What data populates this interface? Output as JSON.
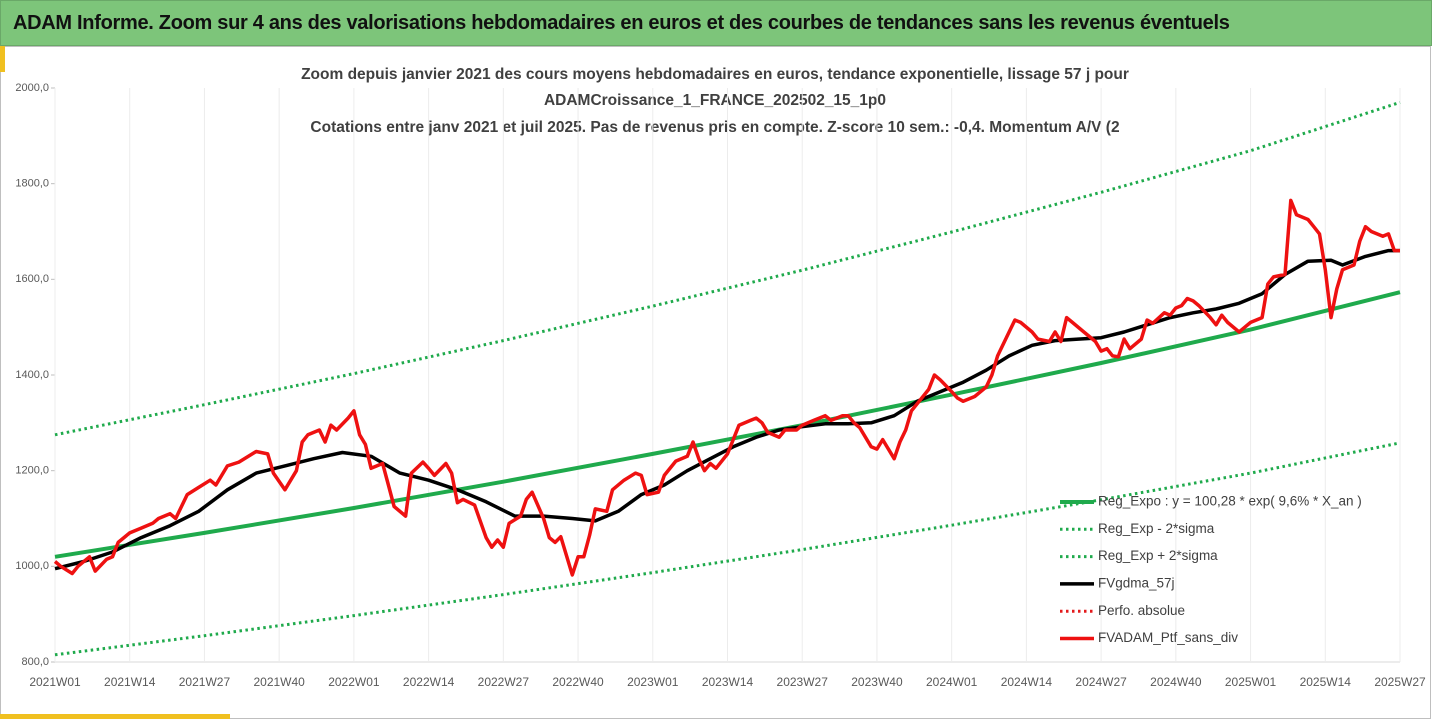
{
  "header": {
    "title": "ADAM Informe. Zoom sur 4 ans des valorisations hebdomadaires en euros et des courbes de tendances sans les revenus éventuels"
  },
  "chart_data": {
    "type": "line",
    "title": [
      "Zoom depuis janvier 2021 des cours moyens hebdomadaires  en euros, tendance exponentielle, lissage 57 j pour",
      "ADAMCroissance_1_FRANCE_202502_15_1p0",
      "Cotations  entre janv 2021 et juil 2025. Pas de revenus pris en compte. Z-score 10 sem.: -0,4. Momentum  A/V (2"
    ],
    "xlim": [
      0,
      234
    ],
    "xticks": [
      {
        "value": 0,
        "label": "2021W01"
      },
      {
        "value": 13,
        "label": "2021W14"
      },
      {
        "value": 26,
        "label": "2021W27"
      },
      {
        "value": 39,
        "label": "2021W40"
      },
      {
        "value": 52,
        "label": "2022W01"
      },
      {
        "value": 65,
        "label": "2022W14"
      },
      {
        "value": 78,
        "label": "2022W27"
      },
      {
        "value": 91,
        "label": "2022W40"
      },
      {
        "value": 104,
        "label": "2023W01"
      },
      {
        "value": 117,
        "label": "2023W14"
      },
      {
        "value": 130,
        "label": "2023W27"
      },
      {
        "value": 143,
        "label": "2023W40"
      },
      {
        "value": 156,
        "label": "2024W01"
      },
      {
        "value": 169,
        "label": "2024W14"
      },
      {
        "value": 182,
        "label": "2024W27"
      },
      {
        "value": 195,
        "label": "2024W40"
      },
      {
        "value": 208,
        "label": "2025W01"
      },
      {
        "value": 221,
        "label": "2025W14"
      },
      {
        "value": 234,
        "label": "2025W27"
      }
    ],
    "ylim": [
      800,
      2000
    ],
    "yticks": [
      {
        "value": 800,
        "label": "800,0"
      },
      {
        "value": 1000,
        "label": "1000,0"
      },
      {
        "value": 1200,
        "label": "1200,0"
      },
      {
        "value": 1400,
        "label": "1400,0"
      },
      {
        "value": 1600,
        "label": "1600,0"
      },
      {
        "value": 1800,
        "label": "1800,0"
      },
      {
        "value": 2000,
        "label": "2000,0"
      }
    ],
    "grid": "x",
    "legend": "lower right",
    "series": [
      {
        "name": "Reg_Expo : y = 100,28 * exp( 9,6% *  X_an )",
        "color": "#1faa4c",
        "line_style": "solid",
        "x": [
          0,
          26,
          52,
          78,
          104,
          130,
          156,
          182,
          208,
          234
        ],
        "values": [
          1020,
          1070,
          1122,
          1177,
          1235,
          1295,
          1359,
          1425,
          1495,
          1573
        ]
      },
      {
        "name": "Reg_Exp - 2*sigma",
        "color": "#1faa4c",
        "line_style": "dotted",
        "x": [
          0,
          26,
          52,
          78,
          104,
          130,
          156,
          182,
          208,
          234
        ],
        "values": [
          815,
          855,
          897,
          941,
          987,
          1035,
          1086,
          1139,
          1195,
          1258
        ]
      },
      {
        "name": "Reg_Exp + 2*sigma",
        "color": "#1faa4c",
        "line_style": "dotted",
        "x": [
          0,
          26,
          52,
          78,
          104,
          130,
          156,
          182,
          208,
          234
        ],
        "values": [
          1275,
          1338,
          1403,
          1472,
          1544,
          1619,
          1699,
          1782,
          1869,
          1970
        ]
      },
      {
        "name": "FVgdma_57j",
        "color": "#000000",
        "line_style": "solid",
        "x": [
          0,
          5,
          10,
          15,
          20,
          25,
          30,
          35,
          40,
          45,
          50,
          55,
          60,
          65,
          70,
          75,
          80,
          85,
          90,
          94,
          98,
          102,
          106,
          110,
          114,
          118,
          122,
          126,
          130,
          134,
          138,
          142,
          146,
          150,
          154,
          158,
          162,
          166,
          170,
          174,
          178,
          182,
          186,
          190,
          194,
          198,
          202,
          206,
          210,
          214,
          218,
          222,
          224,
          228,
          232,
          234
        ],
        "values": [
          995,
          1010,
          1030,
          1060,
          1085,
          1115,
          1160,
          1195,
          1210,
          1225,
          1238,
          1230,
          1195,
          1180,
          1160,
          1135,
          1105,
          1105,
          1100,
          1095,
          1115,
          1150,
          1170,
          1200,
          1225,
          1250,
          1270,
          1285,
          1292,
          1298,
          1298,
          1300,
          1315,
          1345,
          1365,
          1385,
          1410,
          1440,
          1462,
          1472,
          1475,
          1478,
          1490,
          1505,
          1520,
          1530,
          1538,
          1550,
          1570,
          1610,
          1638,
          1640,
          1630,
          1648,
          1660,
          1660
        ]
      },
      {
        "name": "Perfo. absolue",
        "color": "#e31a1c",
        "line_style": "dotted",
        "x": [],
        "values": []
      },
      {
        "name": "FVADAM_Ptf_sans_div",
        "color": "#ee1111",
        "line_style": "solid",
        "x": [
          0,
          1,
          3,
          4,
          6,
          7,
          9,
          10,
          11,
          13,
          15,
          17,
          18,
          20,
          21,
          23,
          25,
          27,
          28,
          30,
          32,
          35,
          37,
          38,
          40,
          42,
          43,
          44,
          46,
          47,
          48,
          49,
          51,
          52,
          53,
          54,
          55,
          57,
          58,
          59,
          61,
          62,
          64,
          65,
          66,
          68,
          69,
          70,
          71,
          73,
          75,
          76,
          77,
          78,
          79,
          81,
          82,
          83,
          85,
          86,
          87,
          88,
          90,
          91,
          92,
          93,
          94,
          96,
          97,
          99,
          101,
          102,
          103,
          105,
          106,
          108,
          110,
          111,
          112,
          113,
          114,
          115,
          117,
          119,
          121,
          122,
          123,
          124,
          126,
          127,
          129,
          130,
          132,
          134,
          135,
          137,
          138,
          139,
          140,
          142,
          143,
          144,
          146,
          147,
          148,
          149,
          150,
          152,
          153,
          154,
          156,
          157,
          158,
          160,
          162,
          163,
          164,
          166,
          167,
          168,
          170,
          171,
          173,
          174,
          175,
          176,
          177,
          179,
          181,
          182,
          183,
          184,
          185,
          186,
          187,
          189,
          190,
          191,
          193,
          194,
          195,
          196,
          197,
          198,
          199,
          201,
          202,
          203,
          204,
          206,
          207,
          208,
          210,
          211,
          212,
          214,
          215,
          216,
          218,
          219,
          220,
          221,
          222,
          223,
          224,
          226,
          227,
          228,
          229,
          231,
          232,
          233,
          234
        ],
        "values": [
          1010,
          1000,
          985,
          1000,
          1020,
          990,
          1015,
          1020,
          1050,
          1070,
          1080,
          1090,
          1100,
          1110,
          1100,
          1150,
          1165,
          1180,
          1170,
          1210,
          1218,
          1240,
          1235,
          1195,
          1160,
          1200,
          1260,
          1275,
          1285,
          1260,
          1295,
          1285,
          1310,
          1325,
          1275,
          1255,
          1205,
          1215,
          1170,
          1125,
          1105,
          1195,
          1218,
          1205,
          1190,
          1215,
          1195,
          1133,
          1140,
          1128,
          1060,
          1040,
          1055,
          1040,
          1090,
          1105,
          1140,
          1155,
          1100,
          1060,
          1050,
          1062,
          982,
          1020,
          1020,
          1065,
          1120,
          1115,
          1160,
          1180,
          1195,
          1190,
          1150,
          1155,
          1190,
          1220,
          1230,
          1260,
          1225,
          1200,
          1215,
          1205,
          1235,
          1295,
          1305,
          1310,
          1300,
          1280,
          1270,
          1285,
          1285,
          1295,
          1305,
          1315,
          1305,
          1315,
          1315,
          1300,
          1290,
          1250,
          1245,
          1265,
          1225,
          1260,
          1285,
          1325,
          1340,
          1370,
          1400,
          1390,
          1365,
          1352,
          1345,
          1355,
          1375,
          1400,
          1440,
          1490,
          1515,
          1510,
          1490,
          1475,
          1470,
          1490,
          1470,
          1520,
          1510,
          1490,
          1470,
          1450,
          1455,
          1440,
          1438,
          1475,
          1455,
          1475,
          1515,
          1508,
          1530,
          1525,
          1540,
          1545,
          1560,
          1555,
          1545,
          1520,
          1505,
          1525,
          1510,
          1490,
          1500,
          1510,
          1520,
          1590,
          1605,
          1610,
          1765,
          1735,
          1725,
          1710,
          1695,
          1620,
          1520,
          1580,
          1620,
          1630,
          1680,
          1710,
          1700,
          1690,
          1695,
          1660,
          1660
        ]
      }
    ]
  }
}
